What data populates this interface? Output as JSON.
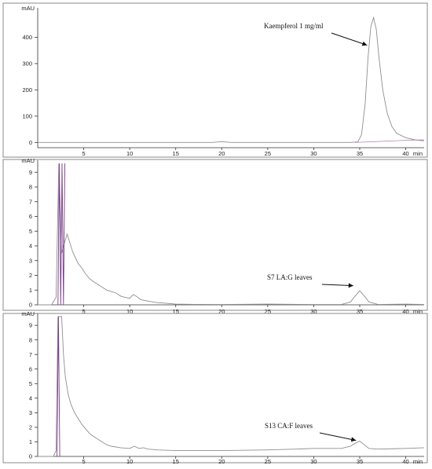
{
  "chart_data": [
    {
      "type": "line",
      "panel": "top",
      "ylabel": "mAU",
      "xlabel": "min",
      "xlim": [
        0,
        42
      ],
      "ylim": [
        -20,
        500
      ],
      "xticks": [
        5,
        10,
        15,
        20,
        25,
        30,
        35,
        40
      ],
      "yticks": [
        0,
        100,
        200,
        300,
        400
      ],
      "annotation": "Kaempferol 1 mg/ml",
      "annotation_target": {
        "x": 35.8,
        "y": 370
      },
      "series": [
        {
          "kind": "main",
          "x": [
            0,
            5,
            10,
            15,
            19,
            20,
            21,
            25,
            30,
            34,
            34.8,
            35.2,
            35.6,
            35.9,
            36.2,
            36.5,
            36.8,
            37.1,
            37.5,
            38,
            38.5,
            39,
            40,
            41,
            42
          ],
          "values": [
            0,
            0,
            0,
            0,
            0,
            3,
            0,
            0,
            0,
            0,
            2,
            30,
            150,
            320,
            440,
            475,
            430,
            320,
            200,
            110,
            60,
            35,
            18,
            10,
            6
          ]
        },
        {
          "kind": "baseline",
          "x": [
            34.5,
            36,
            38,
            40,
            42
          ],
          "values": [
            0,
            2,
            5,
            8,
            10
          ]
        }
      ]
    },
    {
      "type": "line",
      "panel": "middle",
      "ylabel": "mAU",
      "xlabel": "min",
      "xlim": [
        0,
        42
      ],
      "ylim": [
        0,
        9.6
      ],
      "xticks": [
        5,
        10,
        15,
        20,
        25,
        30,
        35,
        40
      ],
      "yticks": [
        0,
        1,
        2,
        3,
        4,
        5,
        6,
        7,
        8,
        9
      ],
      "annotation": "S7 LA:G leaves",
      "annotation_target": {
        "x": 34.3,
        "y": 1.3
      },
      "series": [
        {
          "kind": "main",
          "x": [
            0,
            1.5,
            2.0,
            2.3,
            2.6,
            2.9,
            3.2,
            3.5,
            3.8,
            4.1,
            4.4,
            4.8,
            5.2,
            5.6,
            6.0,
            6.5,
            7.0,
            7.5,
            8.0,
            8.5,
            9.0,
            9.5,
            10.0,
            10.4,
            10.8,
            11.2,
            12,
            13,
            14,
            15,
            17,
            20,
            25,
            30,
            33,
            34,
            34.5,
            35,
            35.5,
            36,
            37,
            40,
            42
          ],
          "values": [
            0,
            0,
            0.5,
            9.6,
            3.5,
            4.2,
            4.8,
            4.2,
            3.6,
            3.2,
            2.8,
            2.5,
            2.1,
            1.8,
            1.6,
            1.4,
            1.2,
            1.0,
            0.9,
            0.8,
            0.6,
            0.5,
            0.45,
            0.7,
            0.55,
            0.35,
            0.25,
            0.15,
            0.1,
            0.05,
            0.03,
            0.02,
            0.05,
            0.02,
            0.02,
            0.2,
            0.6,
            0.95,
            0.6,
            0.2,
            0.02,
            0.05,
            0.02
          ]
        },
        {
          "kind": "spike",
          "x": [
            2.2,
            2.35,
            2.5,
            2.65,
            2.8,
            2.95
          ],
          "values": [
            0,
            9.6,
            0,
            9.6,
            0,
            9.6
          ]
        }
      ]
    },
    {
      "type": "line",
      "panel": "bottom",
      "ylabel": "mAU",
      "xlabel": "min",
      "xlim": [
        0,
        42
      ],
      "ylim": [
        0,
        9.6
      ],
      "xticks": [
        5,
        10,
        15,
        20,
        25,
        30,
        35,
        40
      ],
      "yticks": [
        0,
        1,
        2,
        3,
        4,
        5,
        6,
        7,
        8,
        9
      ],
      "annotation": "S13 CA:F leaves",
      "annotation_target": {
        "x": 34.6,
        "y": 1.1
      },
      "series": [
        {
          "kind": "main",
          "x": [
            0,
            1.7,
            2.0,
            2.2,
            2.4,
            2.6,
            2.8,
            3.0,
            3.3,
            3.6,
            4.0,
            4.4,
            4.8,
            5.2,
            5.6,
            6.0,
            6.5,
            7.0,
            7.5,
            8,
            9,
            10,
            10.5,
            11,
            11.5,
            12,
            13,
            15,
            20,
            25,
            28,
            30,
            33,
            34,
            34.5,
            35,
            35.5,
            36,
            37,
            40,
            42
          ],
          "values": [
            0,
            0,
            0.4,
            9.6,
            9.6,
            9.6,
            7.0,
            5.5,
            4.3,
            3.6,
            3.0,
            2.6,
            2.2,
            1.9,
            1.6,
            1.4,
            1.2,
            1.0,
            0.8,
            0.7,
            0.6,
            0.55,
            0.7,
            0.55,
            0.6,
            0.5,
            0.45,
            0.4,
            0.4,
            0.45,
            0.5,
            0.55,
            0.55,
            0.7,
            0.9,
            1.05,
            0.8,
            0.55,
            0.5,
            0.55,
            0.6
          ]
        },
        {
          "kind": "spike",
          "x": [
            2.1,
            2.25,
            2.4
          ],
          "values": [
            0,
            9.6,
            0
          ]
        }
      ]
    }
  ]
}
